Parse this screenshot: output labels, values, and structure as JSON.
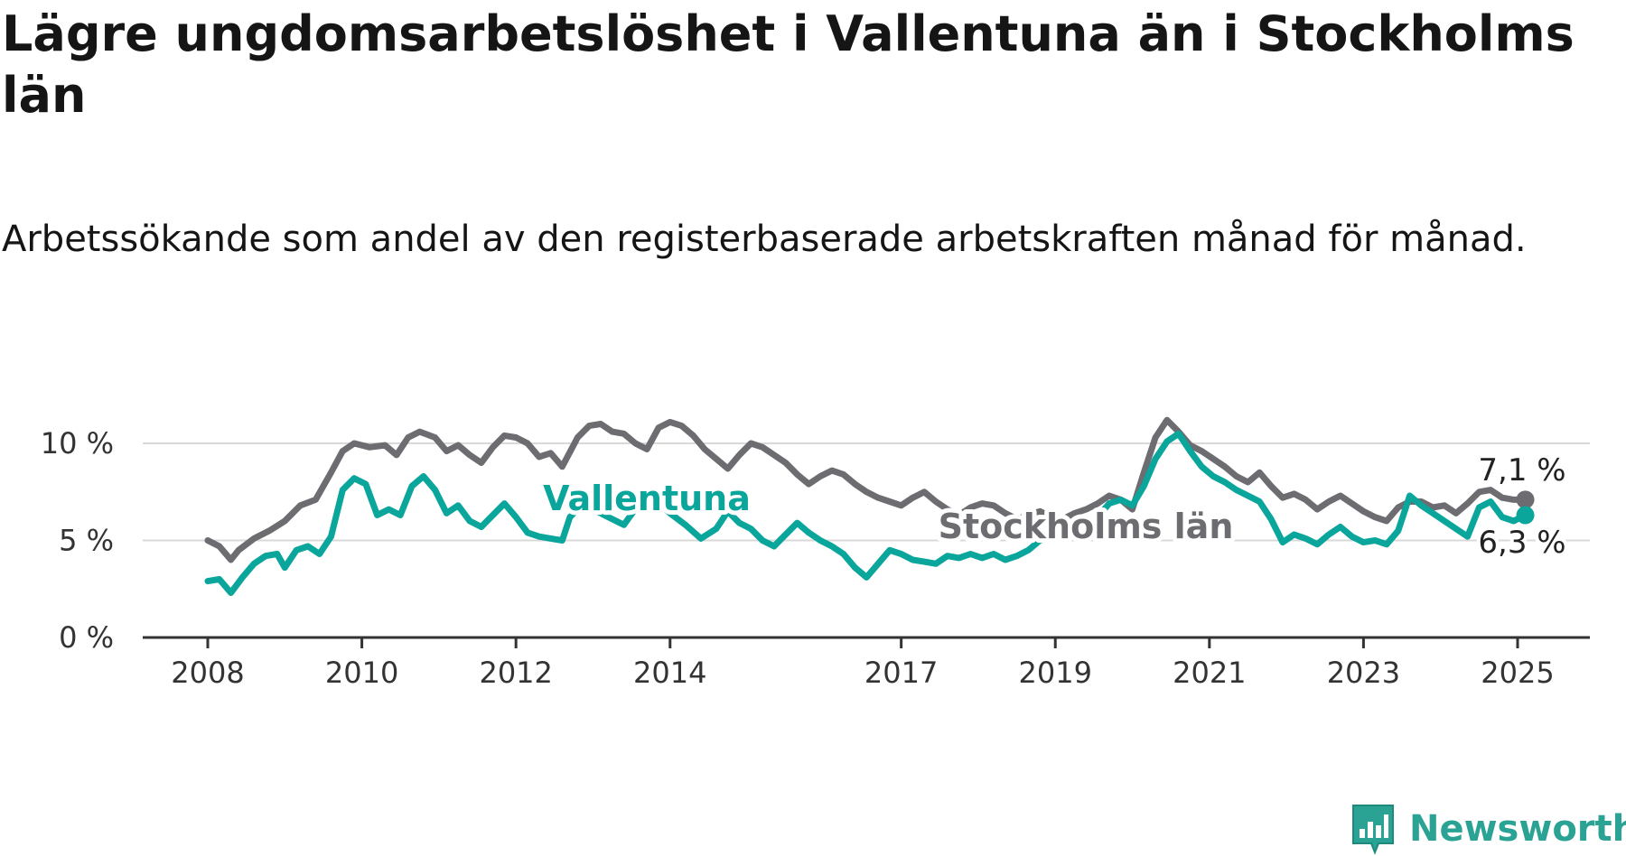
{
  "title": "Lägre ungdomsarbetslöshet i Vallentuna än i Stockholms län",
  "subtitle": "Arbetssökande som andel av den registerbaserade arbetskraften månad för månad.",
  "brand": {
    "name": "Newsworthy",
    "color": "#2aa394",
    "icon": "bar-chart-speech-bubble-icon"
  },
  "chart_data": {
    "type": "line",
    "xlabel": "",
    "ylabel": "",
    "xlim": [
      2008,
      2025.95
    ],
    "ylim": [
      0,
      10.5
    ],
    "yticks": [
      {
        "value": 0,
        "label": "0 %"
      },
      {
        "value": 5,
        "label": "5 %"
      },
      {
        "value": 10,
        "label": "10 %"
      }
    ],
    "xticks": [
      {
        "value": 2008,
        "label": "2008"
      },
      {
        "value": 2010,
        "label": "2010"
      },
      {
        "value": 2012,
        "label": "2012"
      },
      {
        "value": 2014,
        "label": "2014"
      },
      {
        "value": 2017,
        "label": "2017"
      },
      {
        "value": 2019,
        "label": "2019"
      },
      {
        "value": 2021,
        "label": "2021"
      },
      {
        "value": 2023,
        "label": "2023"
      },
      {
        "value": 2025,
        "label": "2025"
      }
    ],
    "grid": true,
    "legend": "direct labels on lines",
    "series": [
      {
        "name": "Stockholms län",
        "color": "#6d6c71",
        "end_label": "7,1 %",
        "points": [
          [
            2008.0,
            5.0
          ],
          [
            2008.15,
            4.7
          ],
          [
            2008.3,
            4.0
          ],
          [
            2008.4,
            4.5
          ],
          [
            2008.6,
            5.1
          ],
          [
            2008.8,
            5.5
          ],
          [
            2009.0,
            6.0
          ],
          [
            2009.2,
            6.8
          ],
          [
            2009.4,
            7.1
          ],
          [
            2009.6,
            8.5
          ],
          [
            2009.75,
            9.6
          ],
          [
            2009.9,
            10.0
          ],
          [
            2010.1,
            9.8
          ],
          [
            2010.3,
            9.9
          ],
          [
            2010.45,
            9.4
          ],
          [
            2010.6,
            10.3
          ],
          [
            2010.75,
            10.6
          ],
          [
            2010.95,
            10.3
          ],
          [
            2011.1,
            9.6
          ],
          [
            2011.25,
            9.9
          ],
          [
            2011.4,
            9.4
          ],
          [
            2011.55,
            9.0
          ],
          [
            2011.7,
            9.8
          ],
          [
            2011.85,
            10.4
          ],
          [
            2012.0,
            10.3
          ],
          [
            2012.15,
            10.0
          ],
          [
            2012.3,
            9.3
          ],
          [
            2012.45,
            9.5
          ],
          [
            2012.6,
            8.8
          ],
          [
            2012.8,
            10.3
          ],
          [
            2012.95,
            10.9
          ],
          [
            2013.1,
            11.0
          ],
          [
            2013.25,
            10.6
          ],
          [
            2013.4,
            10.5
          ],
          [
            2013.55,
            10.0
          ],
          [
            2013.7,
            9.7
          ],
          [
            2013.85,
            10.8
          ],
          [
            2014.0,
            11.1
          ],
          [
            2014.15,
            10.9
          ],
          [
            2014.3,
            10.4
          ],
          [
            2014.45,
            9.7
          ],
          [
            2014.6,
            9.2
          ],
          [
            2014.75,
            8.7
          ],
          [
            2014.9,
            9.4
          ],
          [
            2015.05,
            10.0
          ],
          [
            2015.2,
            9.8
          ],
          [
            2015.35,
            9.4
          ],
          [
            2015.5,
            9.0
          ],
          [
            2015.65,
            8.4
          ],
          [
            2015.8,
            7.9
          ],
          [
            2015.95,
            8.3
          ],
          [
            2016.1,
            8.6
          ],
          [
            2016.25,
            8.4
          ],
          [
            2016.4,
            7.9
          ],
          [
            2016.55,
            7.5
          ],
          [
            2016.7,
            7.2
          ],
          [
            2016.85,
            7.0
          ],
          [
            2017.0,
            6.8
          ],
          [
            2017.15,
            7.2
          ],
          [
            2017.3,
            7.5
          ],
          [
            2017.45,
            7.0
          ],
          [
            2017.6,
            6.6
          ],
          [
            2017.75,
            6.3
          ],
          [
            2017.9,
            6.7
          ],
          [
            2018.05,
            6.9
          ],
          [
            2018.2,
            6.8
          ],
          [
            2018.35,
            6.4
          ],
          [
            2018.5,
            6.1
          ],
          [
            2018.65,
            6.3
          ],
          [
            2018.8,
            6.5
          ],
          [
            2018.95,
            6.2
          ],
          [
            2019.1,
            6.1
          ],
          [
            2019.25,
            6.4
          ],
          [
            2019.4,
            6.6
          ],
          [
            2019.55,
            6.9
          ],
          [
            2019.7,
            7.3
          ],
          [
            2019.85,
            7.1
          ],
          [
            2020.0,
            6.6
          ],
          [
            2020.15,
            8.5
          ],
          [
            2020.3,
            10.3
          ],
          [
            2020.45,
            11.2
          ],
          [
            2020.6,
            10.6
          ],
          [
            2020.75,
            9.9
          ],
          [
            2020.9,
            9.6
          ],
          [
            2021.05,
            9.2
          ],
          [
            2021.2,
            8.8
          ],
          [
            2021.35,
            8.3
          ],
          [
            2021.5,
            8.0
          ],
          [
            2021.65,
            8.5
          ],
          [
            2021.8,
            7.8
          ],
          [
            2021.95,
            7.2
          ],
          [
            2022.1,
            7.4
          ],
          [
            2022.25,
            7.1
          ],
          [
            2022.4,
            6.6
          ],
          [
            2022.55,
            7.0
          ],
          [
            2022.7,
            7.3
          ],
          [
            2022.85,
            6.9
          ],
          [
            2023.0,
            6.5
          ],
          [
            2023.15,
            6.2
          ],
          [
            2023.3,
            6.0
          ],
          [
            2023.45,
            6.7
          ],
          [
            2023.6,
            7.0
          ],
          [
            2023.75,
            7.0
          ],
          [
            2023.9,
            6.7
          ],
          [
            2024.05,
            6.8
          ],
          [
            2024.2,
            6.4
          ],
          [
            2024.35,
            6.9
          ],
          [
            2024.5,
            7.5
          ],
          [
            2024.65,
            7.6
          ],
          [
            2024.8,
            7.2
          ],
          [
            2024.95,
            7.1
          ],
          [
            2025.1,
            7.1
          ]
        ]
      },
      {
        "name": "Vallentuna",
        "color": "#0aa59b",
        "end_label": "6,3 %",
        "points": [
          [
            2008.0,
            2.9
          ],
          [
            2008.15,
            3.0
          ],
          [
            2008.3,
            2.3
          ],
          [
            2008.45,
            3.1
          ],
          [
            2008.6,
            3.8
          ],
          [
            2008.75,
            4.2
          ],
          [
            2008.9,
            4.3
          ],
          [
            2009.0,
            3.6
          ],
          [
            2009.15,
            4.5
          ],
          [
            2009.3,
            4.7
          ],
          [
            2009.45,
            4.3
          ],
          [
            2009.6,
            5.2
          ],
          [
            2009.75,
            7.6
          ],
          [
            2009.9,
            8.2
          ],
          [
            2010.05,
            7.9
          ],
          [
            2010.2,
            6.3
          ],
          [
            2010.35,
            6.6
          ],
          [
            2010.5,
            6.3
          ],
          [
            2010.65,
            7.8
          ],
          [
            2010.8,
            8.3
          ],
          [
            2010.95,
            7.6
          ],
          [
            2011.1,
            6.4
          ],
          [
            2011.25,
            6.8
          ],
          [
            2011.4,
            6.0
          ],
          [
            2011.55,
            5.7
          ],
          [
            2011.7,
            6.3
          ],
          [
            2011.85,
            6.9
          ],
          [
            2012.0,
            6.2
          ],
          [
            2012.15,
            5.4
          ],
          [
            2012.3,
            5.2
          ],
          [
            2012.45,
            5.1
          ],
          [
            2012.6,
            5.0
          ],
          [
            2012.7,
            6.2
          ],
          [
            2012.85,
            6.8
          ],
          [
            2013.0,
            6.6
          ],
          [
            2013.2,
            6.2
          ],
          [
            2013.4,
            5.8
          ],
          [
            2013.6,
            6.9
          ],
          [
            2013.8,
            7.1
          ],
          [
            2014.0,
            6.4
          ],
          [
            2014.2,
            5.8
          ],
          [
            2014.4,
            5.1
          ],
          [
            2014.6,
            5.6
          ],
          [
            2014.75,
            6.5
          ],
          [
            2014.9,
            5.9
          ],
          [
            2015.05,
            5.6
          ],
          [
            2015.2,
            5.0
          ],
          [
            2015.35,
            4.7
          ],
          [
            2015.5,
            5.3
          ],
          [
            2015.65,
            5.9
          ],
          [
            2015.8,
            5.4
          ],
          [
            2015.95,
            5.0
          ],
          [
            2016.1,
            4.7
          ],
          [
            2016.25,
            4.3
          ],
          [
            2016.4,
            3.6
          ],
          [
            2016.55,
            3.1
          ],
          [
            2016.7,
            3.8
          ],
          [
            2016.85,
            4.5
          ],
          [
            2017.0,
            4.3
          ],
          [
            2017.15,
            4.0
          ],
          [
            2017.3,
            3.9
          ],
          [
            2017.45,
            3.8
          ],
          [
            2017.6,
            4.2
          ],
          [
            2017.75,
            4.1
          ],
          [
            2017.9,
            4.3
          ],
          [
            2018.05,
            4.1
          ],
          [
            2018.2,
            4.3
          ],
          [
            2018.35,
            4.0
          ],
          [
            2018.5,
            4.2
          ],
          [
            2018.65,
            4.5
          ],
          [
            2018.8,
            5.0
          ],
          [
            2018.95,
            5.2
          ],
          [
            2019.1,
            5.4
          ],
          [
            2019.25,
            5.3
          ],
          [
            2019.4,
            5.6
          ],
          [
            2019.55,
            6.2
          ],
          [
            2019.7,
            6.9
          ],
          [
            2019.85,
            7.1
          ],
          [
            2020.0,
            6.8
          ],
          [
            2020.15,
            7.8
          ],
          [
            2020.3,
            9.2
          ],
          [
            2020.45,
            10.1
          ],
          [
            2020.6,
            10.5
          ],
          [
            2020.75,
            9.6
          ],
          [
            2020.9,
            8.8
          ],
          [
            2021.05,
            8.3
          ],
          [
            2021.2,
            8.0
          ],
          [
            2021.35,
            7.6
          ],
          [
            2021.5,
            7.3
          ],
          [
            2021.65,
            7.0
          ],
          [
            2021.8,
            6.1
          ],
          [
            2021.95,
            4.9
          ],
          [
            2022.1,
            5.3
          ],
          [
            2022.25,
            5.1
          ],
          [
            2022.4,
            4.8
          ],
          [
            2022.55,
            5.3
          ],
          [
            2022.7,
            5.7
          ],
          [
            2022.85,
            5.2
          ],
          [
            2023.0,
            4.9
          ],
          [
            2023.15,
            5.0
          ],
          [
            2023.3,
            4.8
          ],
          [
            2023.45,
            5.5
          ],
          [
            2023.6,
            7.3
          ],
          [
            2023.75,
            6.8
          ],
          [
            2023.9,
            6.4
          ],
          [
            2024.05,
            6.0
          ],
          [
            2024.2,
            5.6
          ],
          [
            2024.35,
            5.2
          ],
          [
            2024.5,
            6.7
          ],
          [
            2024.65,
            7.0
          ],
          [
            2024.8,
            6.2
          ],
          [
            2024.95,
            6.0
          ],
          [
            2025.1,
            6.3
          ]
        ]
      }
    ]
  }
}
